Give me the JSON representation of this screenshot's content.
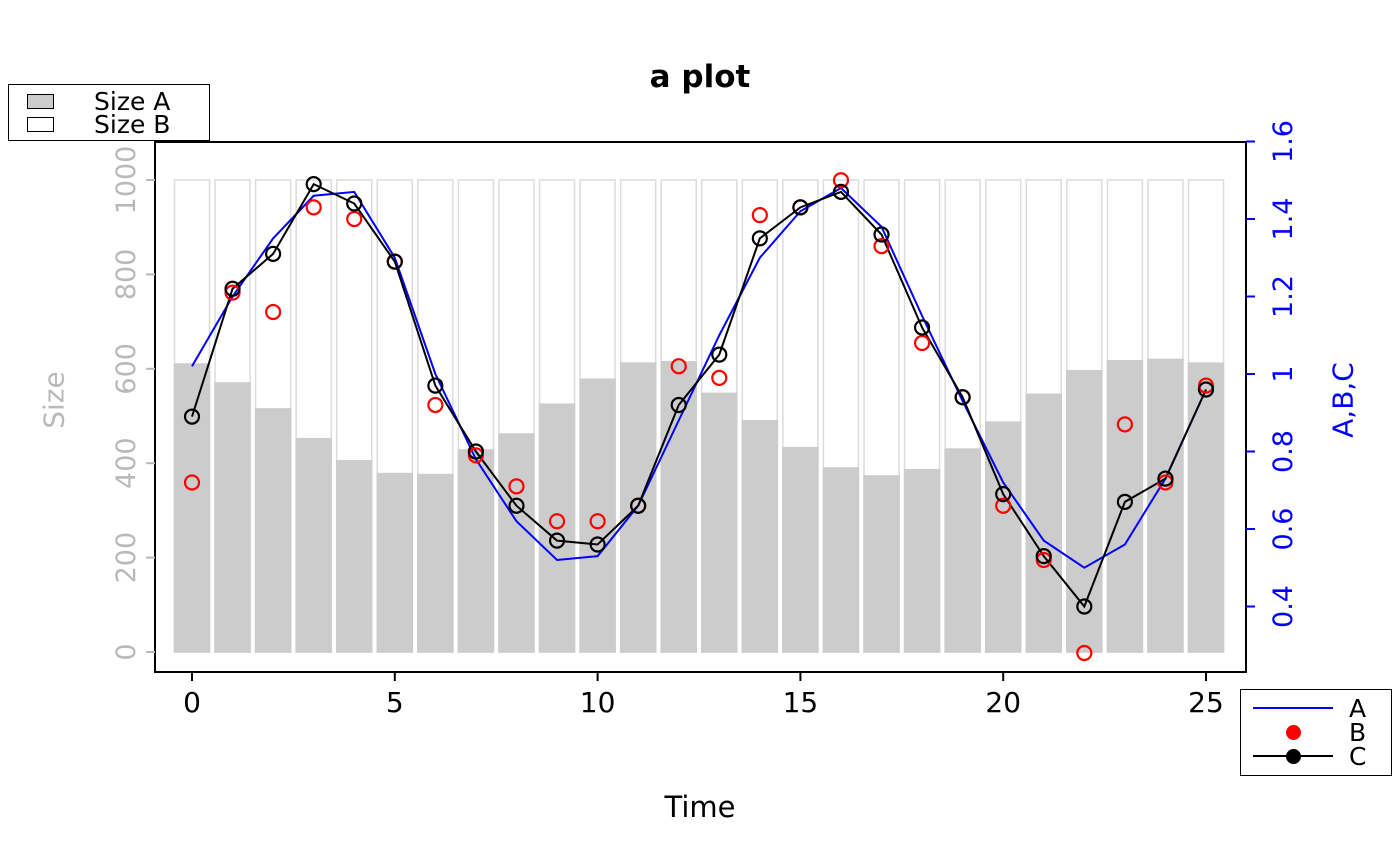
{
  "chart_data": {
    "type": "bar+line combo",
    "title": "a plot",
    "xlabel": "Time",
    "grid": false,
    "x": [
      0,
      1,
      2,
      3,
      4,
      5,
      6,
      7,
      8,
      9,
      10,
      11,
      12,
      13,
      14,
      15,
      16,
      17,
      18,
      19,
      20,
      21,
      22,
      23,
      24,
      25
    ],
    "x_axis": {
      "ticks": [
        0,
        5,
        10,
        15,
        20,
        25
      ],
      "range": [
        0,
        25
      ]
    },
    "left_axis": {
      "label": "Size",
      "color": "#b9b9b9",
      "ticks": [
        0,
        200,
        400,
        600,
        800,
        1000
      ],
      "range": [
        0,
        1000
      ]
    },
    "right_axis": {
      "label": "A,B,C",
      "color": "#0000ff",
      "ticks": [
        0.4,
        0.6,
        0.8,
        1,
        1.2,
        1.4,
        1.6
      ],
      "range": [
        0.28,
        1.62
      ]
    },
    "bars": {
      "size_b": {
        "label": "Size B",
        "fill": "#ffffff",
        "stroke": "#dcdcdc",
        "axis": "left",
        "values": [
          1000,
          1000,
          1000,
          1000,
          1000,
          1000,
          1000,
          1000,
          1000,
          1000,
          1000,
          1000,
          1000,
          1000,
          1000,
          1000,
          1000,
          1000,
          1000,
          1000,
          1000,
          1000,
          1000,
          1000,
          1000,
          1000
        ]
      },
      "size_a": {
        "label": "Size A",
        "fill": "#cccccc",
        "stroke": "#cccccc",
        "axis": "left",
        "values": [
          610,
          570,
          515,
          452,
          405,
          378,
          376,
          428,
          462,
          525,
          578,
          612,
          615,
          548,
          490,
          433,
          390,
          373,
          386,
          430,
          487,
          546,
          596,
          617,
          620,
          612
        ]
      }
    },
    "series": [
      {
        "name": "A",
        "style": "line",
        "color": "#0000ff",
        "axis": "right",
        "values": [
          1.02,
          1.2,
          1.35,
          1.46,
          1.47,
          1.3,
          1.0,
          0.78,
          0.62,
          0.52,
          0.53,
          0.66,
          0.88,
          1.1,
          1.3,
          1.42,
          1.48,
          1.38,
          1.15,
          0.93,
          0.72,
          0.57,
          0.5,
          0.56,
          0.73,
          0.96
        ]
      },
      {
        "name": "B",
        "style": "points",
        "color": "#ff0000",
        "axis": "right",
        "values": [
          0.72,
          1.21,
          1.16,
          1.43,
          1.4,
          1.29,
          0.92,
          0.79,
          0.71,
          0.62,
          0.62,
          0.66,
          1.02,
          0.99,
          1.41,
          1.43,
          1.5,
          1.33,
          1.08,
          0.94,
          0.66,
          0.52,
          0.28,
          0.87,
          0.72,
          0.97
        ]
      },
      {
        "name": "C",
        "style": "line+points",
        "color": "#000000",
        "axis": "right",
        "values": [
          0.89,
          1.22,
          1.31,
          1.49,
          1.44,
          1.29,
          0.97,
          0.8,
          0.66,
          0.57,
          0.56,
          0.66,
          0.92,
          1.05,
          1.35,
          1.43,
          1.47,
          1.36,
          1.12,
          0.94,
          0.69,
          0.53,
          0.4,
          0.67,
          0.73,
          0.96
        ]
      }
    ],
    "legend_bars": {
      "position": "top-left",
      "items": [
        {
          "label": "Size A"
        },
        {
          "label": "Size B"
        }
      ]
    },
    "legend_series": {
      "position": "bottom-right",
      "items": [
        {
          "label": "A"
        },
        {
          "label": "B"
        },
        {
          "label": "C"
        }
      ]
    }
  }
}
